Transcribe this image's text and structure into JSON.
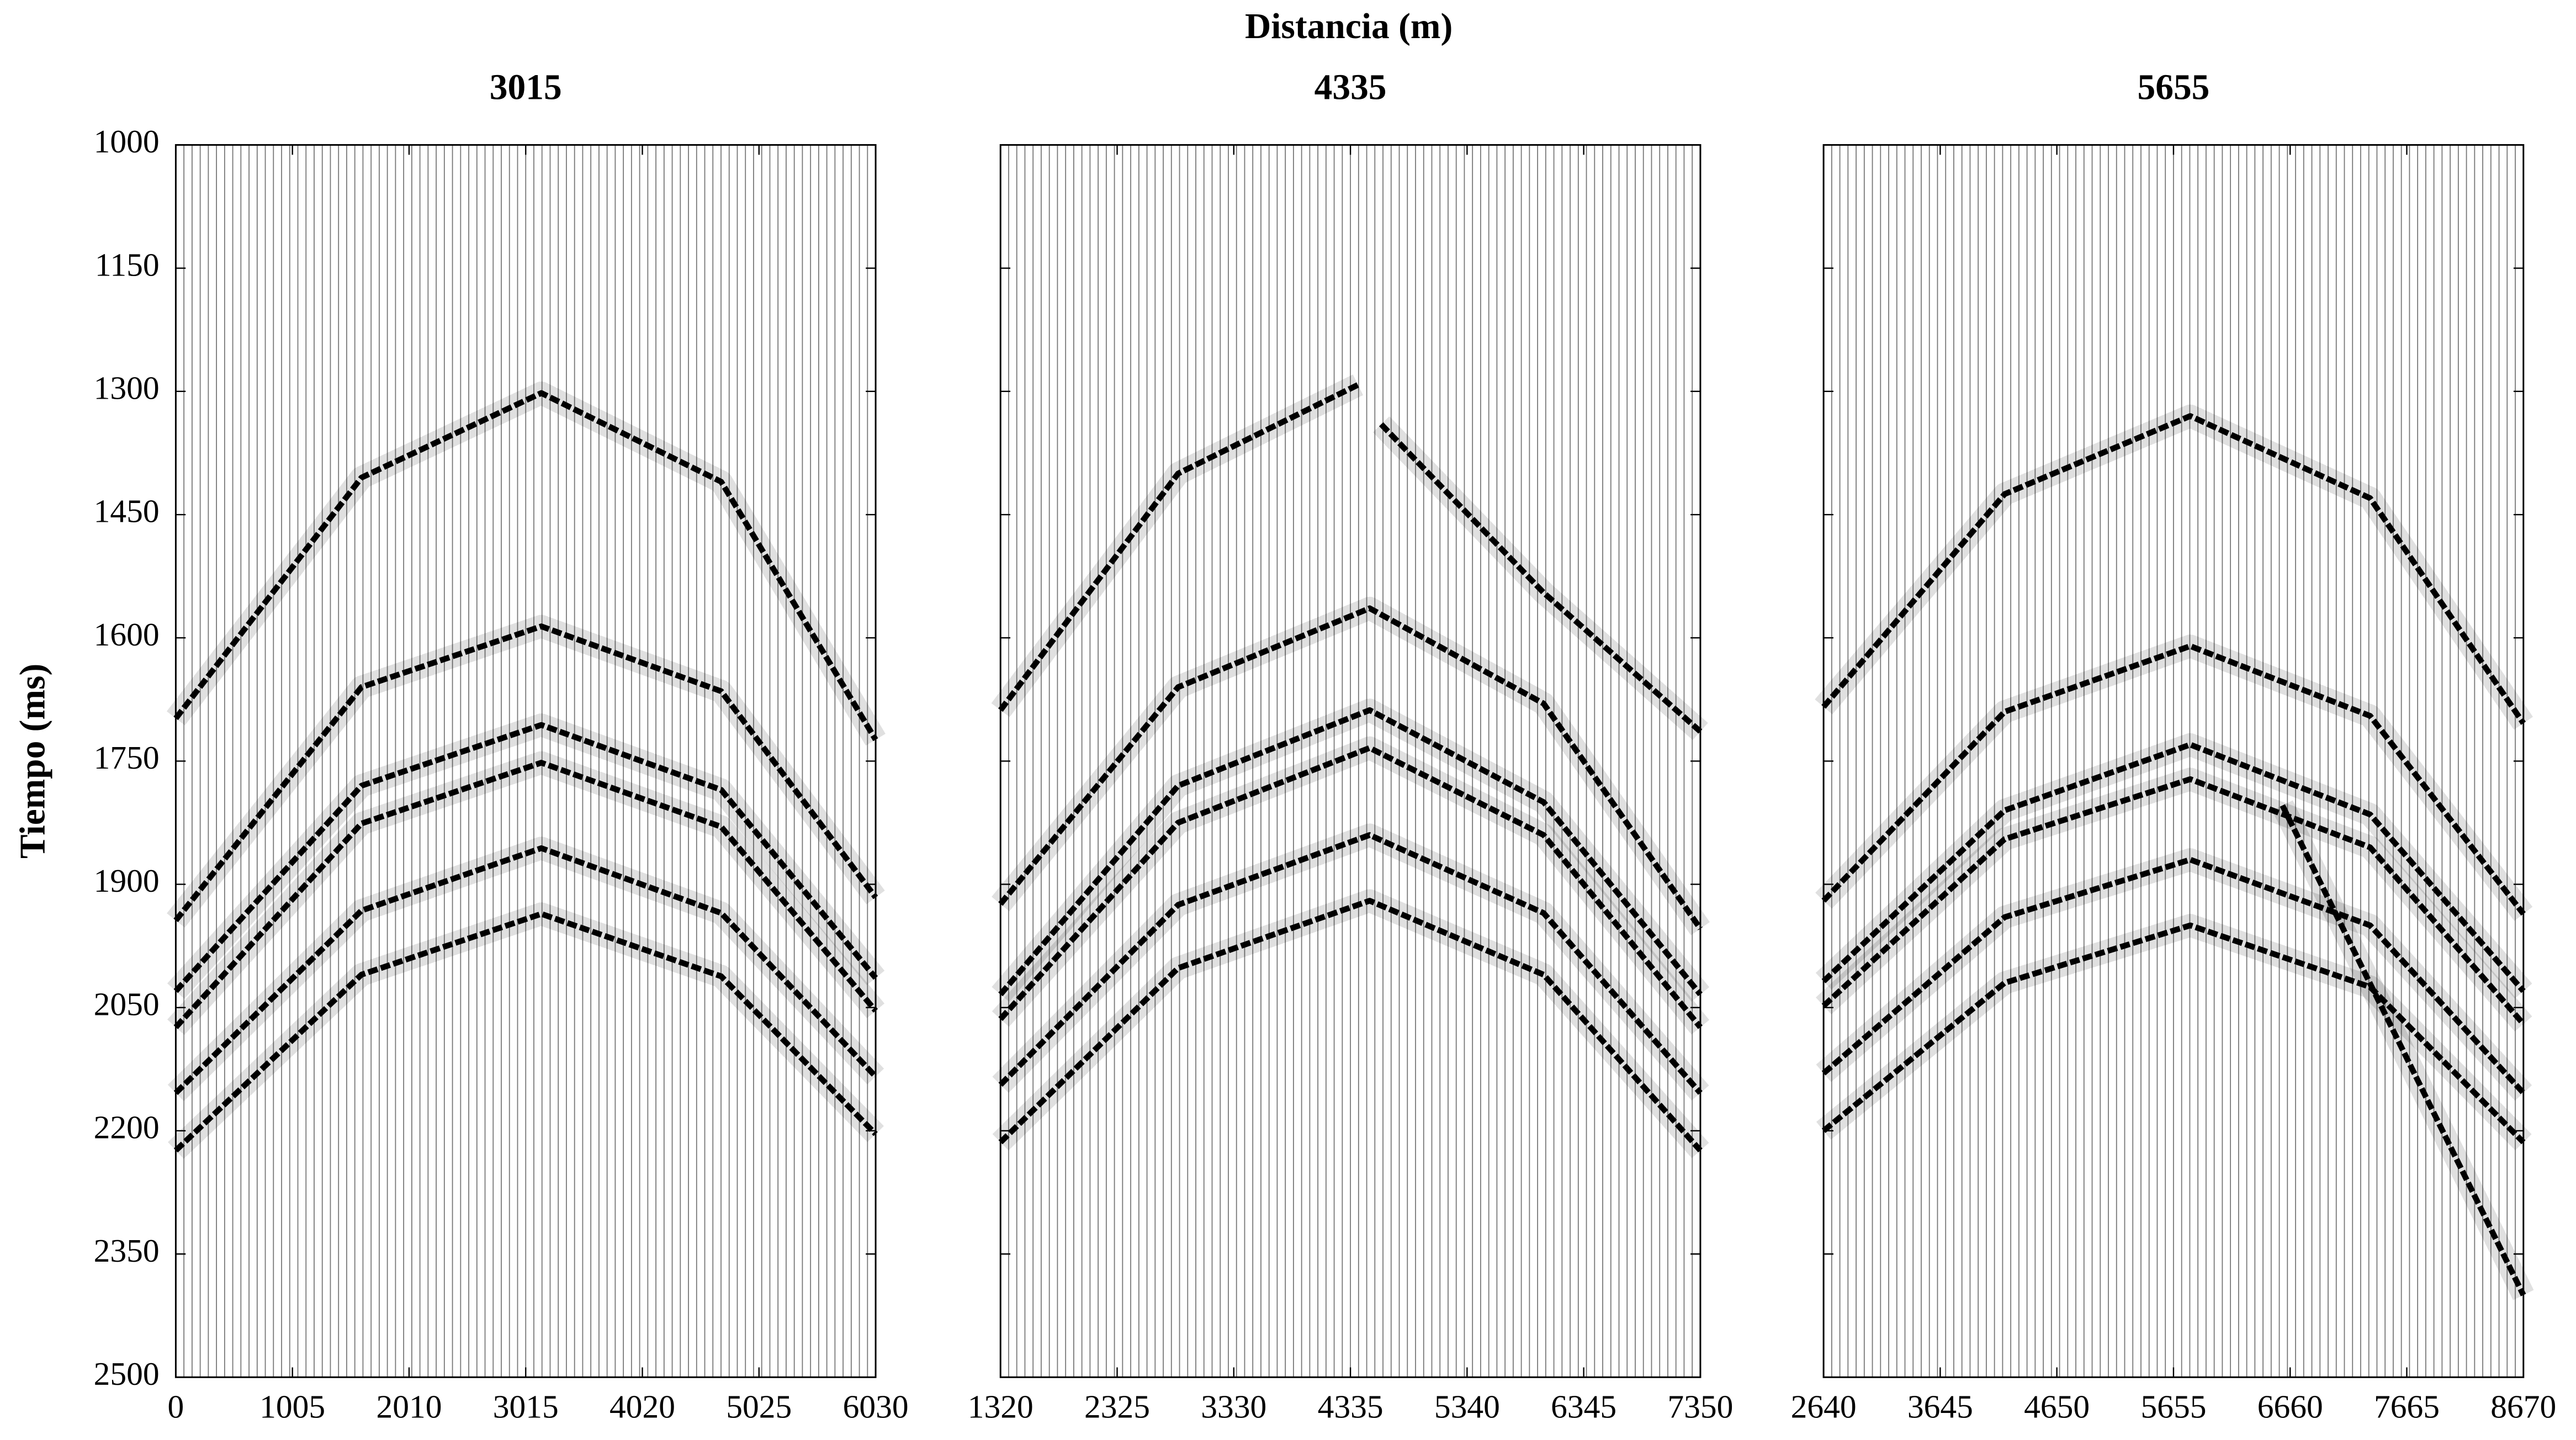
{
  "figure": {
    "xlabel": "Distancia (m)",
    "ylabel": "Tiempo (ms)"
  },
  "chart_data": [
    {
      "type": "line",
      "title": "3015",
      "color": "#000000",
      "y_inverted": true,
      "xlim": [
        0,
        6030
      ],
      "xticks": [
        0,
        1005,
        2010,
        3015,
        4020,
        5025,
        6030
      ],
      "ylim": [
        1000,
        2500
      ],
      "yticks": [
        1000,
        1150,
        1300,
        1450,
        1600,
        1750,
        1900,
        2050,
        2200,
        2350,
        2500
      ],
      "series": [
        {
          "x": [
            0,
            1600,
            3150,
            4700,
            6030
          ],
          "values": [
            1698,
            1405,
            1302,
            1410,
            1724
          ]
        },
        {
          "x": [
            0,
            1600,
            3150,
            4700,
            6030
          ],
          "values": [
            1944,
            1660,
            1586,
            1665,
            1916
          ]
        },
        {
          "x": [
            0,
            1600,
            3150,
            4700,
            6030
          ],
          "values": [
            2030,
            1780,
            1706,
            1785,
            2014
          ]
        },
        {
          "x": [
            0,
            1600,
            3150,
            4700,
            6030
          ],
          "values": [
            2074,
            1826,
            1752,
            1830,
            2054
          ]
        },
        {
          "x": [
            0,
            1600,
            3150,
            4700,
            6030
          ],
          "values": [
            2154,
            1932,
            1856,
            1935,
            2134
          ]
        },
        {
          "x": [
            0,
            1600,
            3150,
            4700,
            6030
          ],
          "values": [
            2224,
            2010,
            1936,
            2012,
            2204
          ]
        }
      ]
    },
    {
      "type": "line",
      "title": "4335",
      "color": "#000000",
      "y_inverted": true,
      "xlim": [
        1320,
        7350
      ],
      "xticks": [
        1320,
        2325,
        3330,
        4335,
        5340,
        6345,
        7350
      ],
      "ylim": [
        1000,
        2500
      ],
      "series": [
        {
          "x": [
            1320,
            2850,
            4400,
            4500,
            4600,
            6000,
            7350
          ],
          "values": [
            1688,
            1400,
            1292,
            null,
            1340,
            1545,
            1714
          ]
        },
        {
          "x": [
            1320,
            2850,
            4500,
            6000,
            7350
          ],
          "values": [
            1924,
            1660,
            1564,
            1680,
            1954
          ]
        },
        {
          "x": [
            1320,
            2850,
            4500,
            6000,
            7350
          ],
          "values": [
            2034,
            1780,
            1688,
            1800,
            2034
          ]
        },
        {
          "x": [
            1320,
            2850,
            4500,
            6000,
            7350
          ],
          "values": [
            2064,
            1825,
            1734,
            1840,
            2074
          ]
        },
        {
          "x": [
            1320,
            2850,
            4500,
            6000,
            7350
          ],
          "values": [
            2144,
            1925,
            1840,
            1935,
            2154
          ]
        },
        {
          "x": [
            1320,
            2850,
            4500,
            6000,
            7350
          ],
          "values": [
            2214,
            2002,
            1920,
            2010,
            2224
          ]
        }
      ]
    },
    {
      "type": "line",
      "title": "5655",
      "color": "#000000",
      "y_inverted": true,
      "xlim": [
        2640,
        8670
      ],
      "xticks": [
        2640,
        3645,
        4650,
        5655,
        6660,
        7665,
        8670
      ],
      "ylim": [
        1000,
        2500
      ],
      "series": [
        {
          "x": [
            2640,
            4200,
            5800,
            7350,
            8670
          ],
          "values": [
            1684,
            1425,
            1330,
            1430,
            1704
          ]
        },
        {
          "x": [
            2640,
            4200,
            5800,
            7350,
            8670
          ],
          "values": [
            1920,
            1690,
            1610,
            1695,
            1936
          ]
        },
        {
          "x": [
            2640,
            4200,
            5800,
            7350,
            8670
          ],
          "values": [
            2018,
            1810,
            1730,
            1815,
            2030
          ]
        },
        {
          "x": [
            2640,
            4200,
            5800,
            7350,
            8670
          ],
          "values": [
            2048,
            1845,
            1772,
            1855,
            2070
          ]
        },
        {
          "x": [
            2640,
            4200,
            5800,
            7350,
            8670
          ],
          "values": [
            2130,
            1940,
            1870,
            1950,
            2154
          ]
        },
        {
          "x": [
            2640,
            4200,
            5800,
            7350,
            8670
          ],
          "values": [
            2200,
            2020,
            1950,
            2025,
            2214
          ]
        },
        {
          "x": [
            6594,
            8670
          ],
          "values": [
            1804,
            2400
          ]
        }
      ]
    }
  ]
}
